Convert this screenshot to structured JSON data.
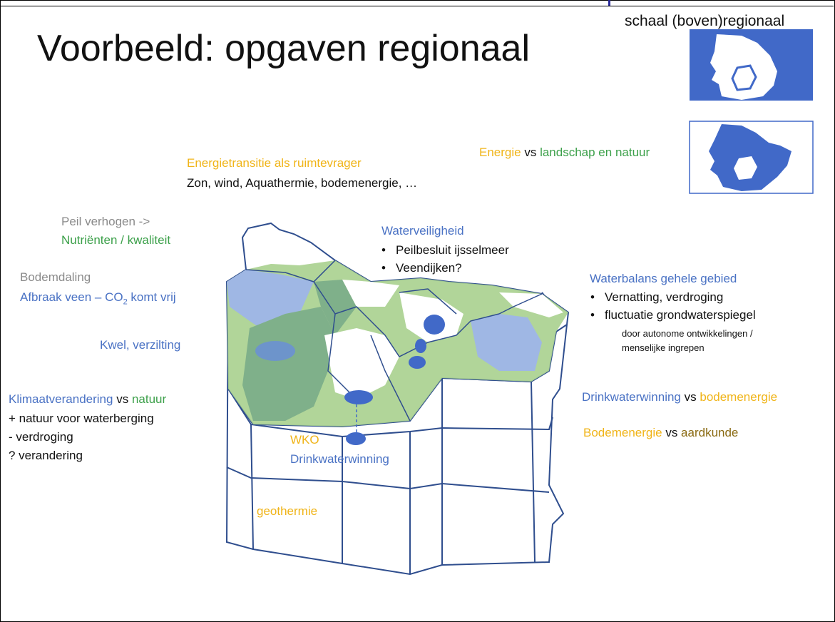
{
  "title": "Voorbeeld: opgaven regionaal",
  "scale_label": "schaal (boven)regionaal",
  "energy_landscape": {
    "a": "Energie",
    "vs": "vs",
    "b": "landschap en natuur"
  },
  "energietransitie": {
    "heading": "Energietransitie als ruimtevrager",
    "detail": "Zon, wind, Aquathermie, bodemenergie, …"
  },
  "peil": {
    "line1": "Peil verhogen ->",
    "line2": "Nutriënten / kwaliteit"
  },
  "bodemdaling": {
    "heading": "Bodemdaling",
    "detail_before": "Afbraak veen – CO",
    "detail_sub": "2",
    "detail_after": " komt vrij"
  },
  "kwel": "Kwel, verzilting",
  "klimaat": {
    "a": "Klimaatverandering",
    "vs": "vs",
    "b": "natuur",
    "items": [
      "+ natuur voor waterberging",
      "- verdroging",
      "? verandering"
    ]
  },
  "waterveiligheid": {
    "heading": "Waterveiligheid",
    "items": [
      "Peilbesluit ijsselmeer",
      "Veendijken?"
    ]
  },
  "waterbalans": {
    "heading": "Waterbalans gehele gebied",
    "items": [
      "Vernatting, verdroging",
      "fluctuatie grondwaterspiegel"
    ],
    "note_line1": "door autonome ontwikkelingen /",
    "note_line2": "menselijke ingrepen"
  },
  "drinkwater_vs": {
    "a": "Drinkwaterwinning",
    "vs": "vs",
    "b": "bodemenergie"
  },
  "bodemenergie_vs": {
    "a": "Bodemenergie",
    "vs": "vs",
    "b": "aardkunde"
  },
  "wko": "WKO",
  "drinkwaterwinning": "Drinkwaterwinning",
  "geothermie": "geothermie",
  "colors": {
    "blue": "#4a72c4",
    "gold": "#f0b418",
    "green": "#3ca04a",
    "grey": "#8a8a8a",
    "olive": "#8a6a12",
    "map_blue": "#4169c8",
    "light_green": "#a9d08e",
    "dark_green": "#7fb08a",
    "light_blue": "#9fb7e4"
  }
}
